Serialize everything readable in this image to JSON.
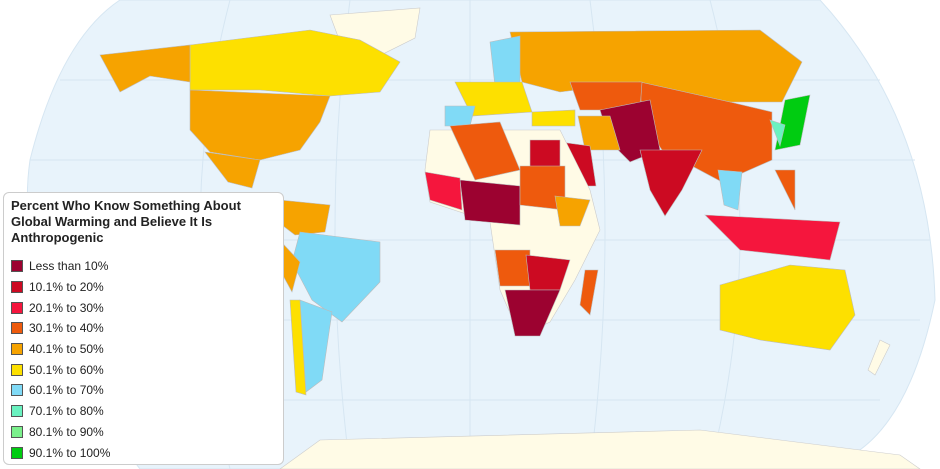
{
  "legend": {
    "title": "Percent Who Know Something About Global Warming and Believe It Is Anthropogenic",
    "items": [
      {
        "label": "Less than 10%",
        "color": "#9c0230"
      },
      {
        "label": "10.1% to 20%",
        "color": "#cc0a22"
      },
      {
        "label": "20.1% to 30%",
        "color": "#f5163d"
      },
      {
        "label": "30.1% to 40%",
        "color": "#ee5a0d"
      },
      {
        "label": "40.1% to 50%",
        "color": "#f6a300"
      },
      {
        "label": "50.1% to 60%",
        "color": "#fde000"
      },
      {
        "label": "60.1% to 70%",
        "color": "#80daf6"
      },
      {
        "label": "70.1% to 80%",
        "color": "#6af2c0"
      },
      {
        "label": "80.1% to 90%",
        "color": "#7bf08c"
      },
      {
        "label": "90.1% to 100%",
        "color": "#00cc11"
      }
    ]
  }
}
